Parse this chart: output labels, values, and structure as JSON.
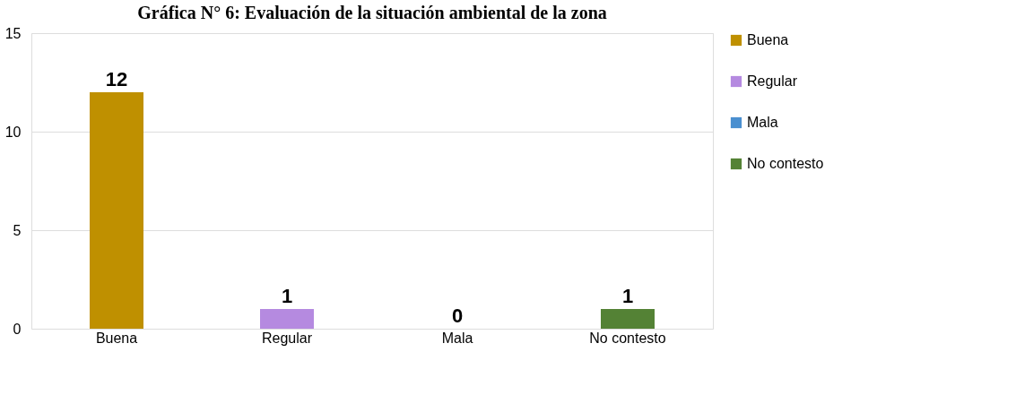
{
  "chart_data": {
    "type": "bar",
    "title": "Gráfica N° 6: Evaluación de la situación ambiental de la zona",
    "categories": [
      "Buena",
      "Regular",
      "Mala",
      "No contesto"
    ],
    "series": [
      {
        "name": "Buena",
        "color": "#bf9000",
        "values": [
          12,
          null,
          null,
          null
        ]
      },
      {
        "name": "Regular",
        "color": "#b58ae0",
        "values": [
          null,
          1,
          null,
          null
        ]
      },
      {
        "name": "Mala",
        "color": "#4a8fd0",
        "values": [
          null,
          null,
          0,
          null
        ]
      },
      {
        "name": "No contesto",
        "color": "#548235",
        "values": [
          null,
          null,
          null,
          1
        ]
      }
    ],
    "ylim": [
      0,
      15
    ],
    "yticks": [
      0,
      5,
      10,
      15
    ],
    "grid": "y",
    "legend": "right",
    "data_labels": true
  }
}
